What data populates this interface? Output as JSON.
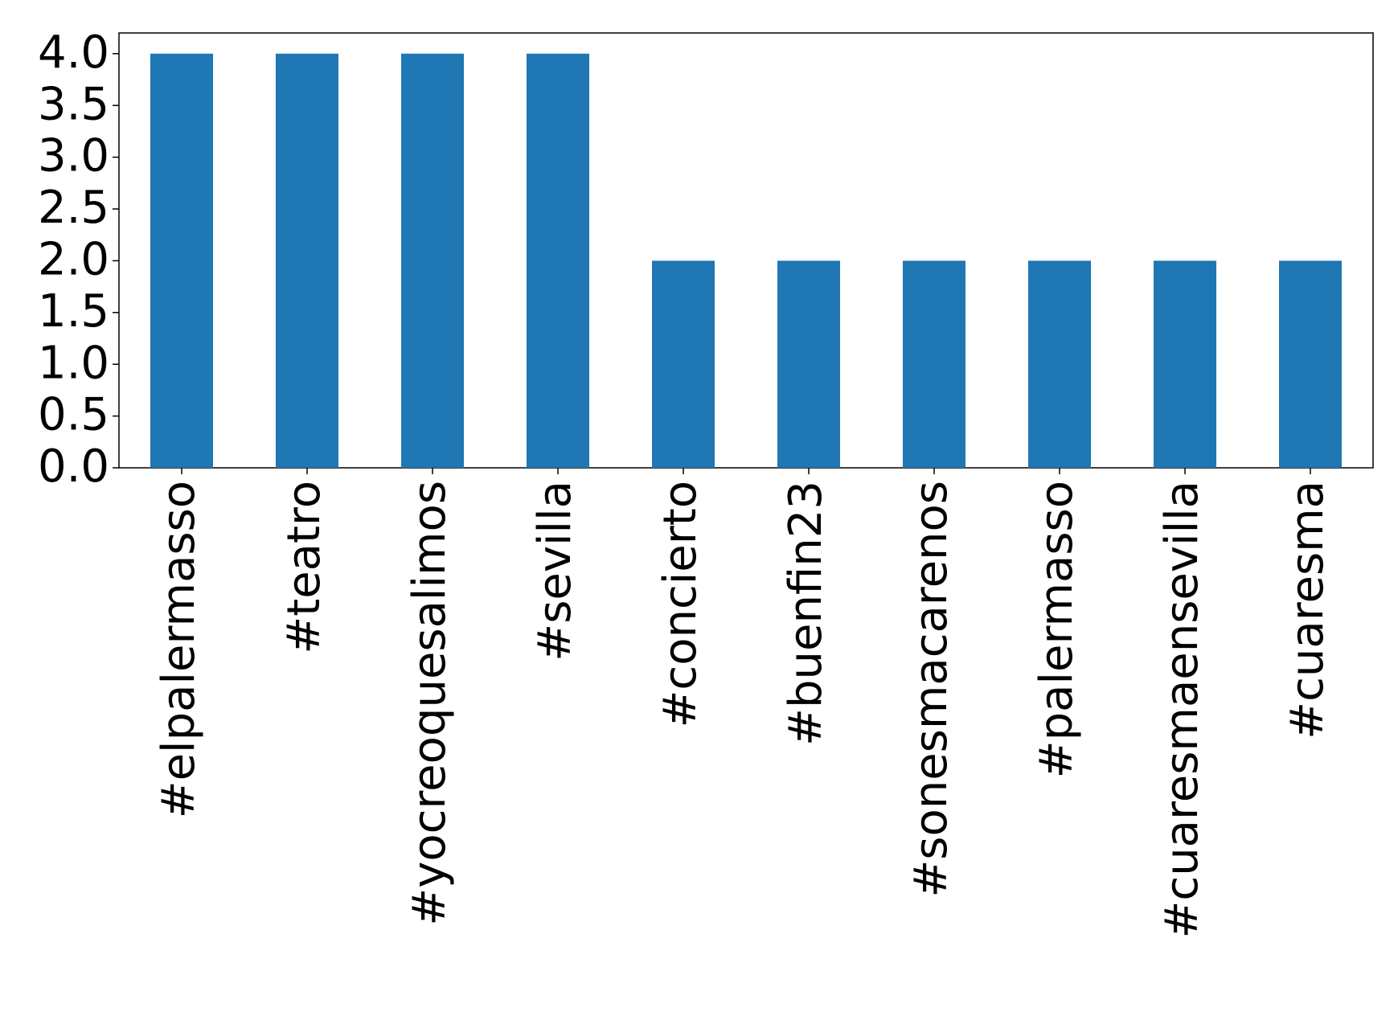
{
  "chart_data": {
    "type": "bar",
    "categories": [
      "#elpalermasso",
      "#teatro",
      "#yocreoquesalimos",
      "#sevilla",
      "#concierto",
      "#buenfin23",
      "#sonesmacarenos",
      "#palermasso",
      "#cuaresmaensevilla",
      "#cuaresma"
    ],
    "values": [
      4,
      4,
      4,
      4,
      2,
      2,
      2,
      2,
      2,
      2
    ],
    "color": "#1f77b4",
    "ylim": [
      0,
      4.2
    ],
    "yticks": [
      {
        "value": 0,
        "label": "0.0"
      },
      {
        "value": 0.5,
        "label": "0.5"
      },
      {
        "value": 1,
        "label": "1.0"
      },
      {
        "value": 1.5,
        "label": "1.5"
      },
      {
        "value": 2,
        "label": "2.0"
      },
      {
        "value": 2.5,
        "label": "2.5"
      },
      {
        "value": 3,
        "label": "3.0"
      },
      {
        "value": 3.5,
        "label": "3.5"
      },
      {
        "value": 4,
        "label": "4.0"
      }
    ],
    "grid": false
  }
}
